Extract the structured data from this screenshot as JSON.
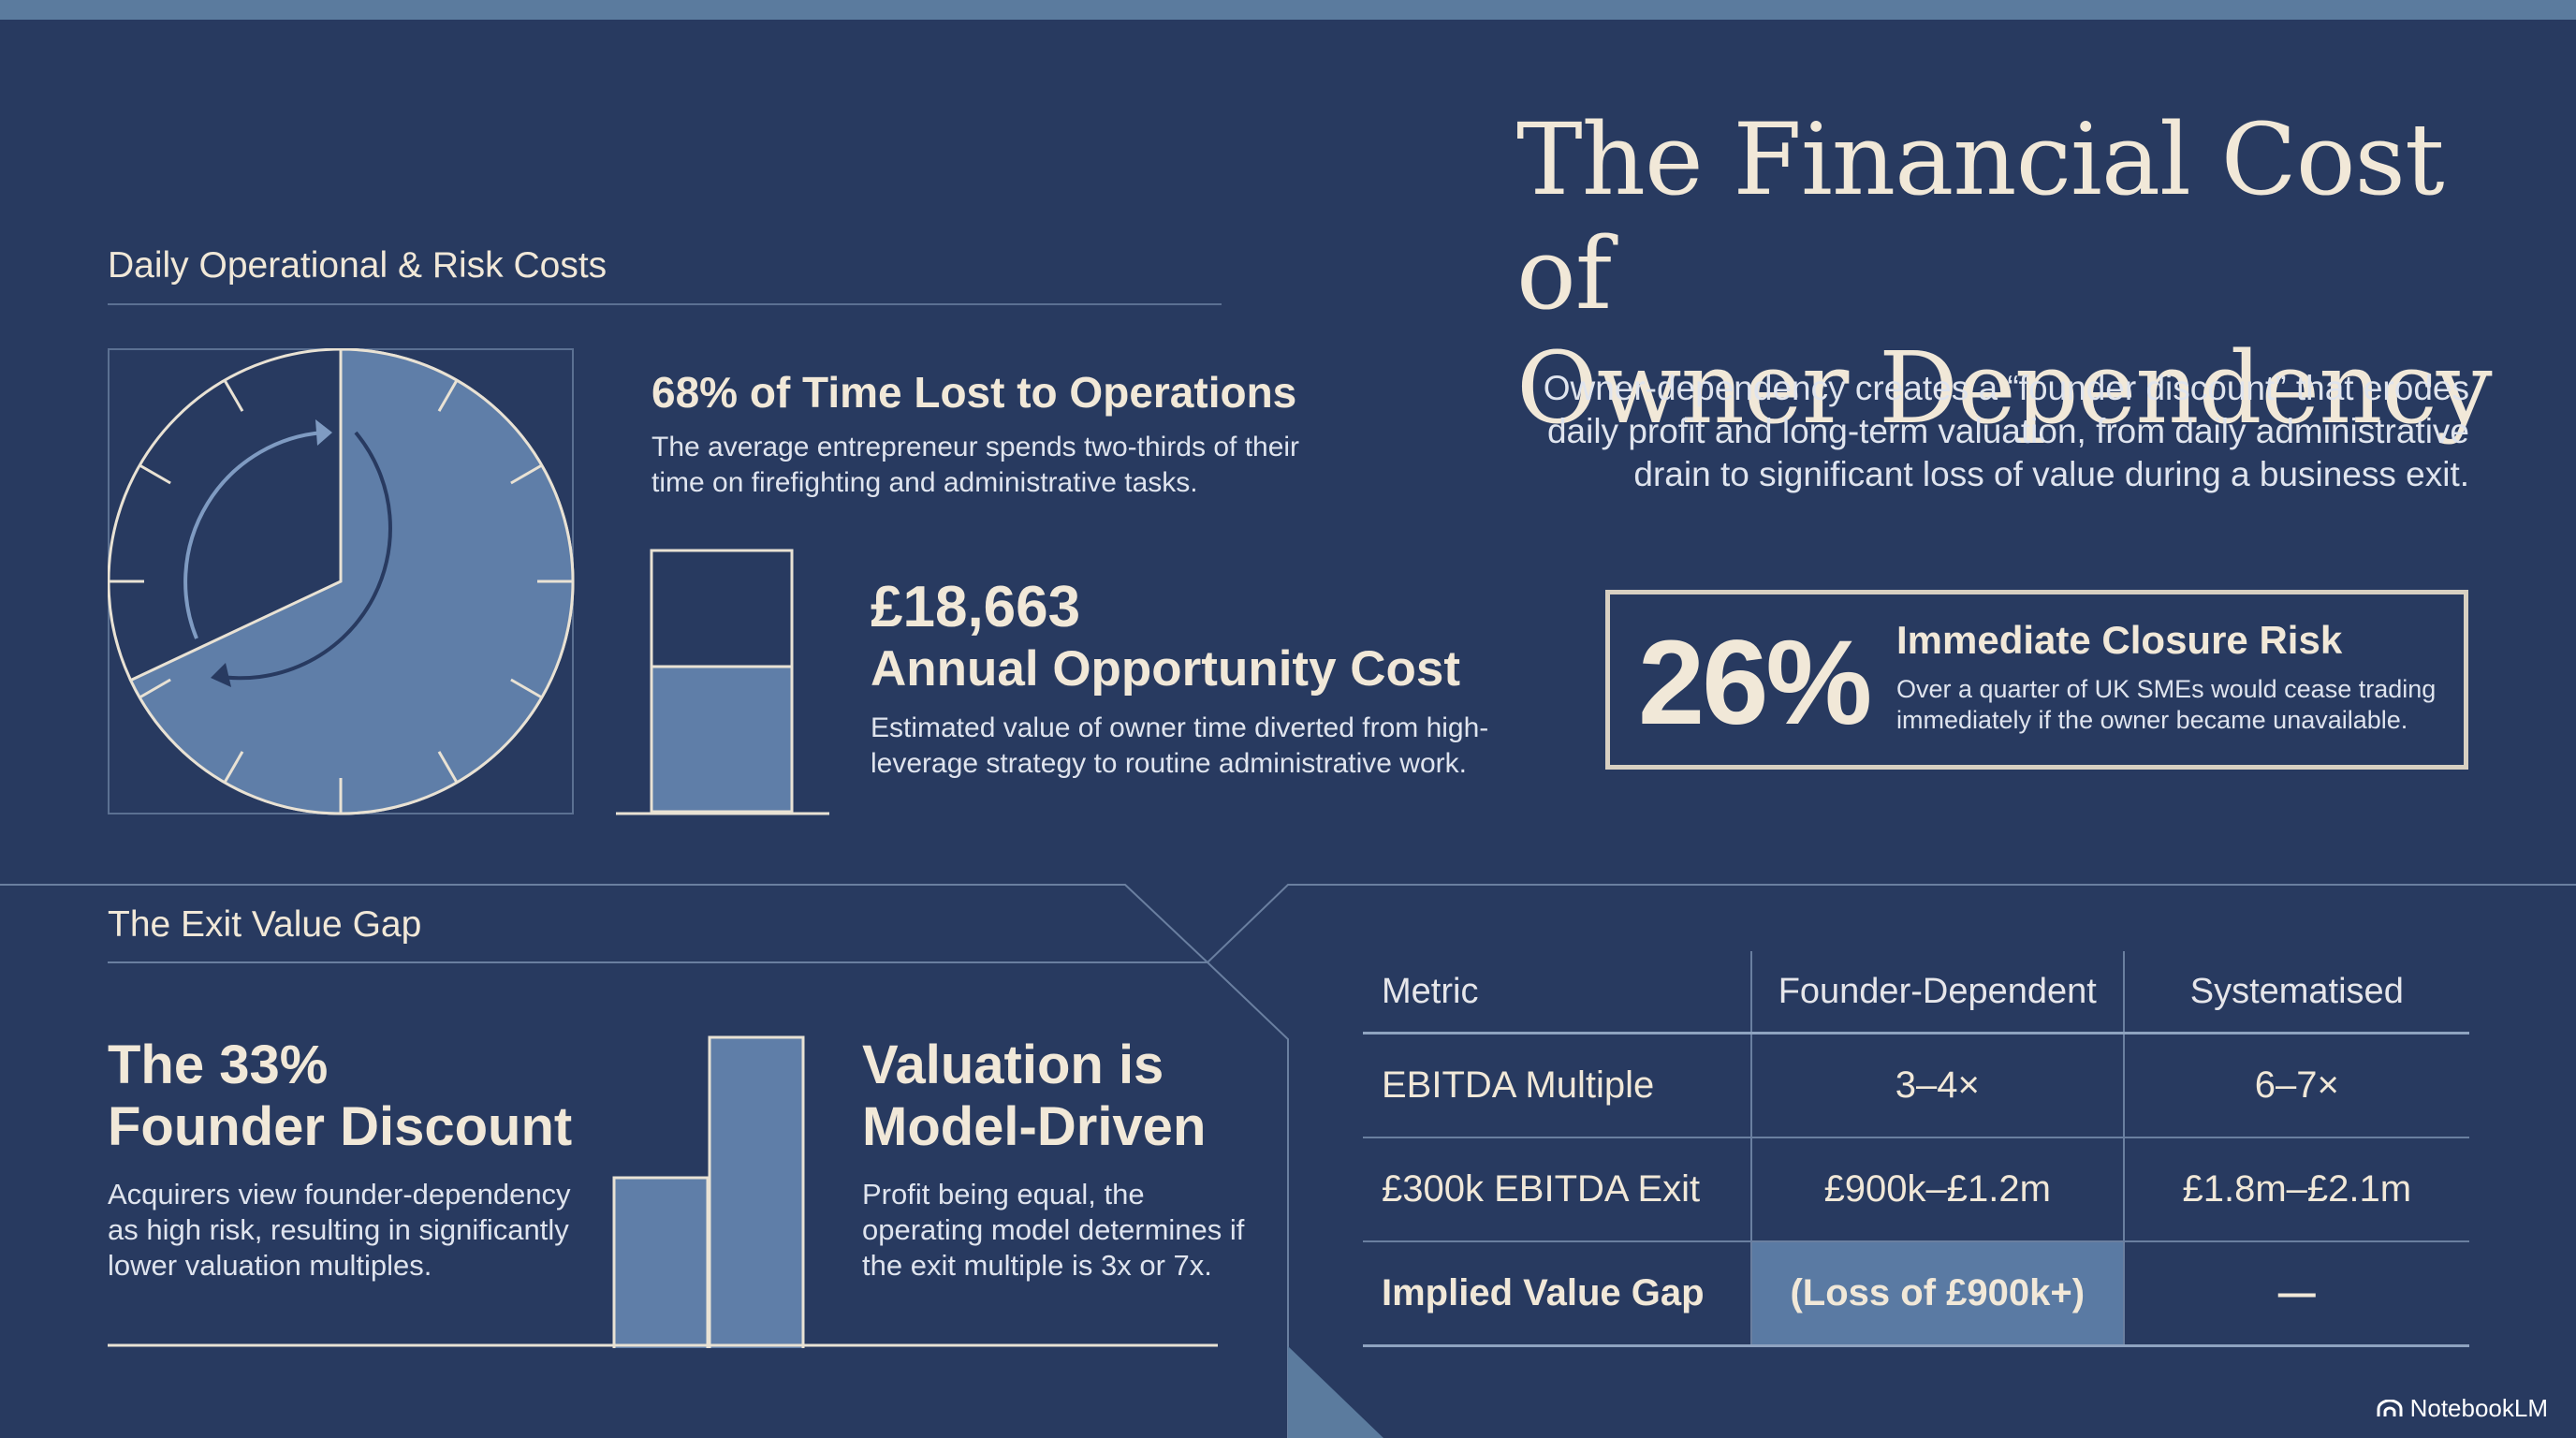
{
  "title": {
    "line1": "The Financial Cost of",
    "line2": "Owner Dependency"
  },
  "subtitle": {
    "line1": "Owner-dependency creates a “founder discount” that erodes",
    "line2": "daily profit and long-term valuation, from daily administrative",
    "line3": "drain to significant loss of value during a business exit."
  },
  "section_daily": {
    "heading": "Daily Operational & Risk Costs",
    "time_lost": {
      "value": 0.68,
      "heading": "68% of Time Lost to Operations",
      "body_line1": "The average entrepreneur spends two-thirds of their",
      "body_line2": "time on firefighting and administrative tasks."
    },
    "opportunity": {
      "amount": "£18,663",
      "label": "Annual Opportunity Cost",
      "body_line1": "Estimated value of owner time diverted from high-",
      "body_line2": "leverage strategy to routine administrative work."
    }
  },
  "risk": {
    "percent": "26%",
    "heading": "Immediate Closure Risk",
    "body_line1": "Over a quarter of UK SMEs would cease trading",
    "body_line2": "immediately if the owner became unavailable."
  },
  "section_exit": {
    "heading": "The Exit Value Gap",
    "discount": {
      "heading_line1": "The 33%",
      "heading_line2": "Founder Discount",
      "body_line1": "Acquirers view founder-dependency",
      "body_line2": "as high risk, resulting in significantly",
      "body_line3": "lower valuation multiples."
    },
    "model": {
      "heading_line1": "Valuation is",
      "heading_line2": "Model-Driven",
      "body_line1": "Profit being equal, the",
      "body_line2": "operating model determines if",
      "body_line3": "the exit multiple is 3x or 7x."
    }
  },
  "table": {
    "headers": [
      "Metric",
      "Founder-Dependent",
      "Systematised"
    ],
    "rows": [
      [
        "EBITDA Multiple",
        "3–4×",
        "6–7×"
      ],
      [
        "£300k EBITDA Exit",
        "£900k–£1.2m",
        "£1.8m–£2.1m"
      ],
      [
        "Implied Value Gap",
        "(Loss of £900k+)",
        "—"
      ]
    ]
  },
  "colors": {
    "background": "#283a60",
    "accent_fill": "#5a7aa3",
    "cream": "#f1e8d8"
  },
  "footer": {
    "logo_text": "NotebookLM",
    "logo_icon": "notebooklm-logo-icon"
  }
}
